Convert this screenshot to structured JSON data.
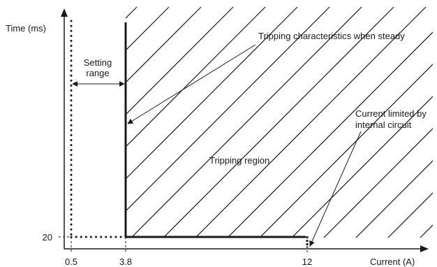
{
  "axes": {
    "y_label": "Time (ms)",
    "x_label": "Current (A)",
    "x_ticks": [
      "0.5",
      "3.8",
      "12"
    ],
    "y_ticks": [
      "20"
    ]
  },
  "annotations": {
    "setting_range_line1": "Setting",
    "setting_range_line2": "range",
    "tripping_characteristics": "Tripping characteristics when steady",
    "current_limited_line1": "Current limited by",
    "current_limited_line2": "internal circuit",
    "tripping_region": "Tripping region"
  },
  "colors": {
    "ink": "#1a1a1a",
    "background": "#ffffff"
  }
}
